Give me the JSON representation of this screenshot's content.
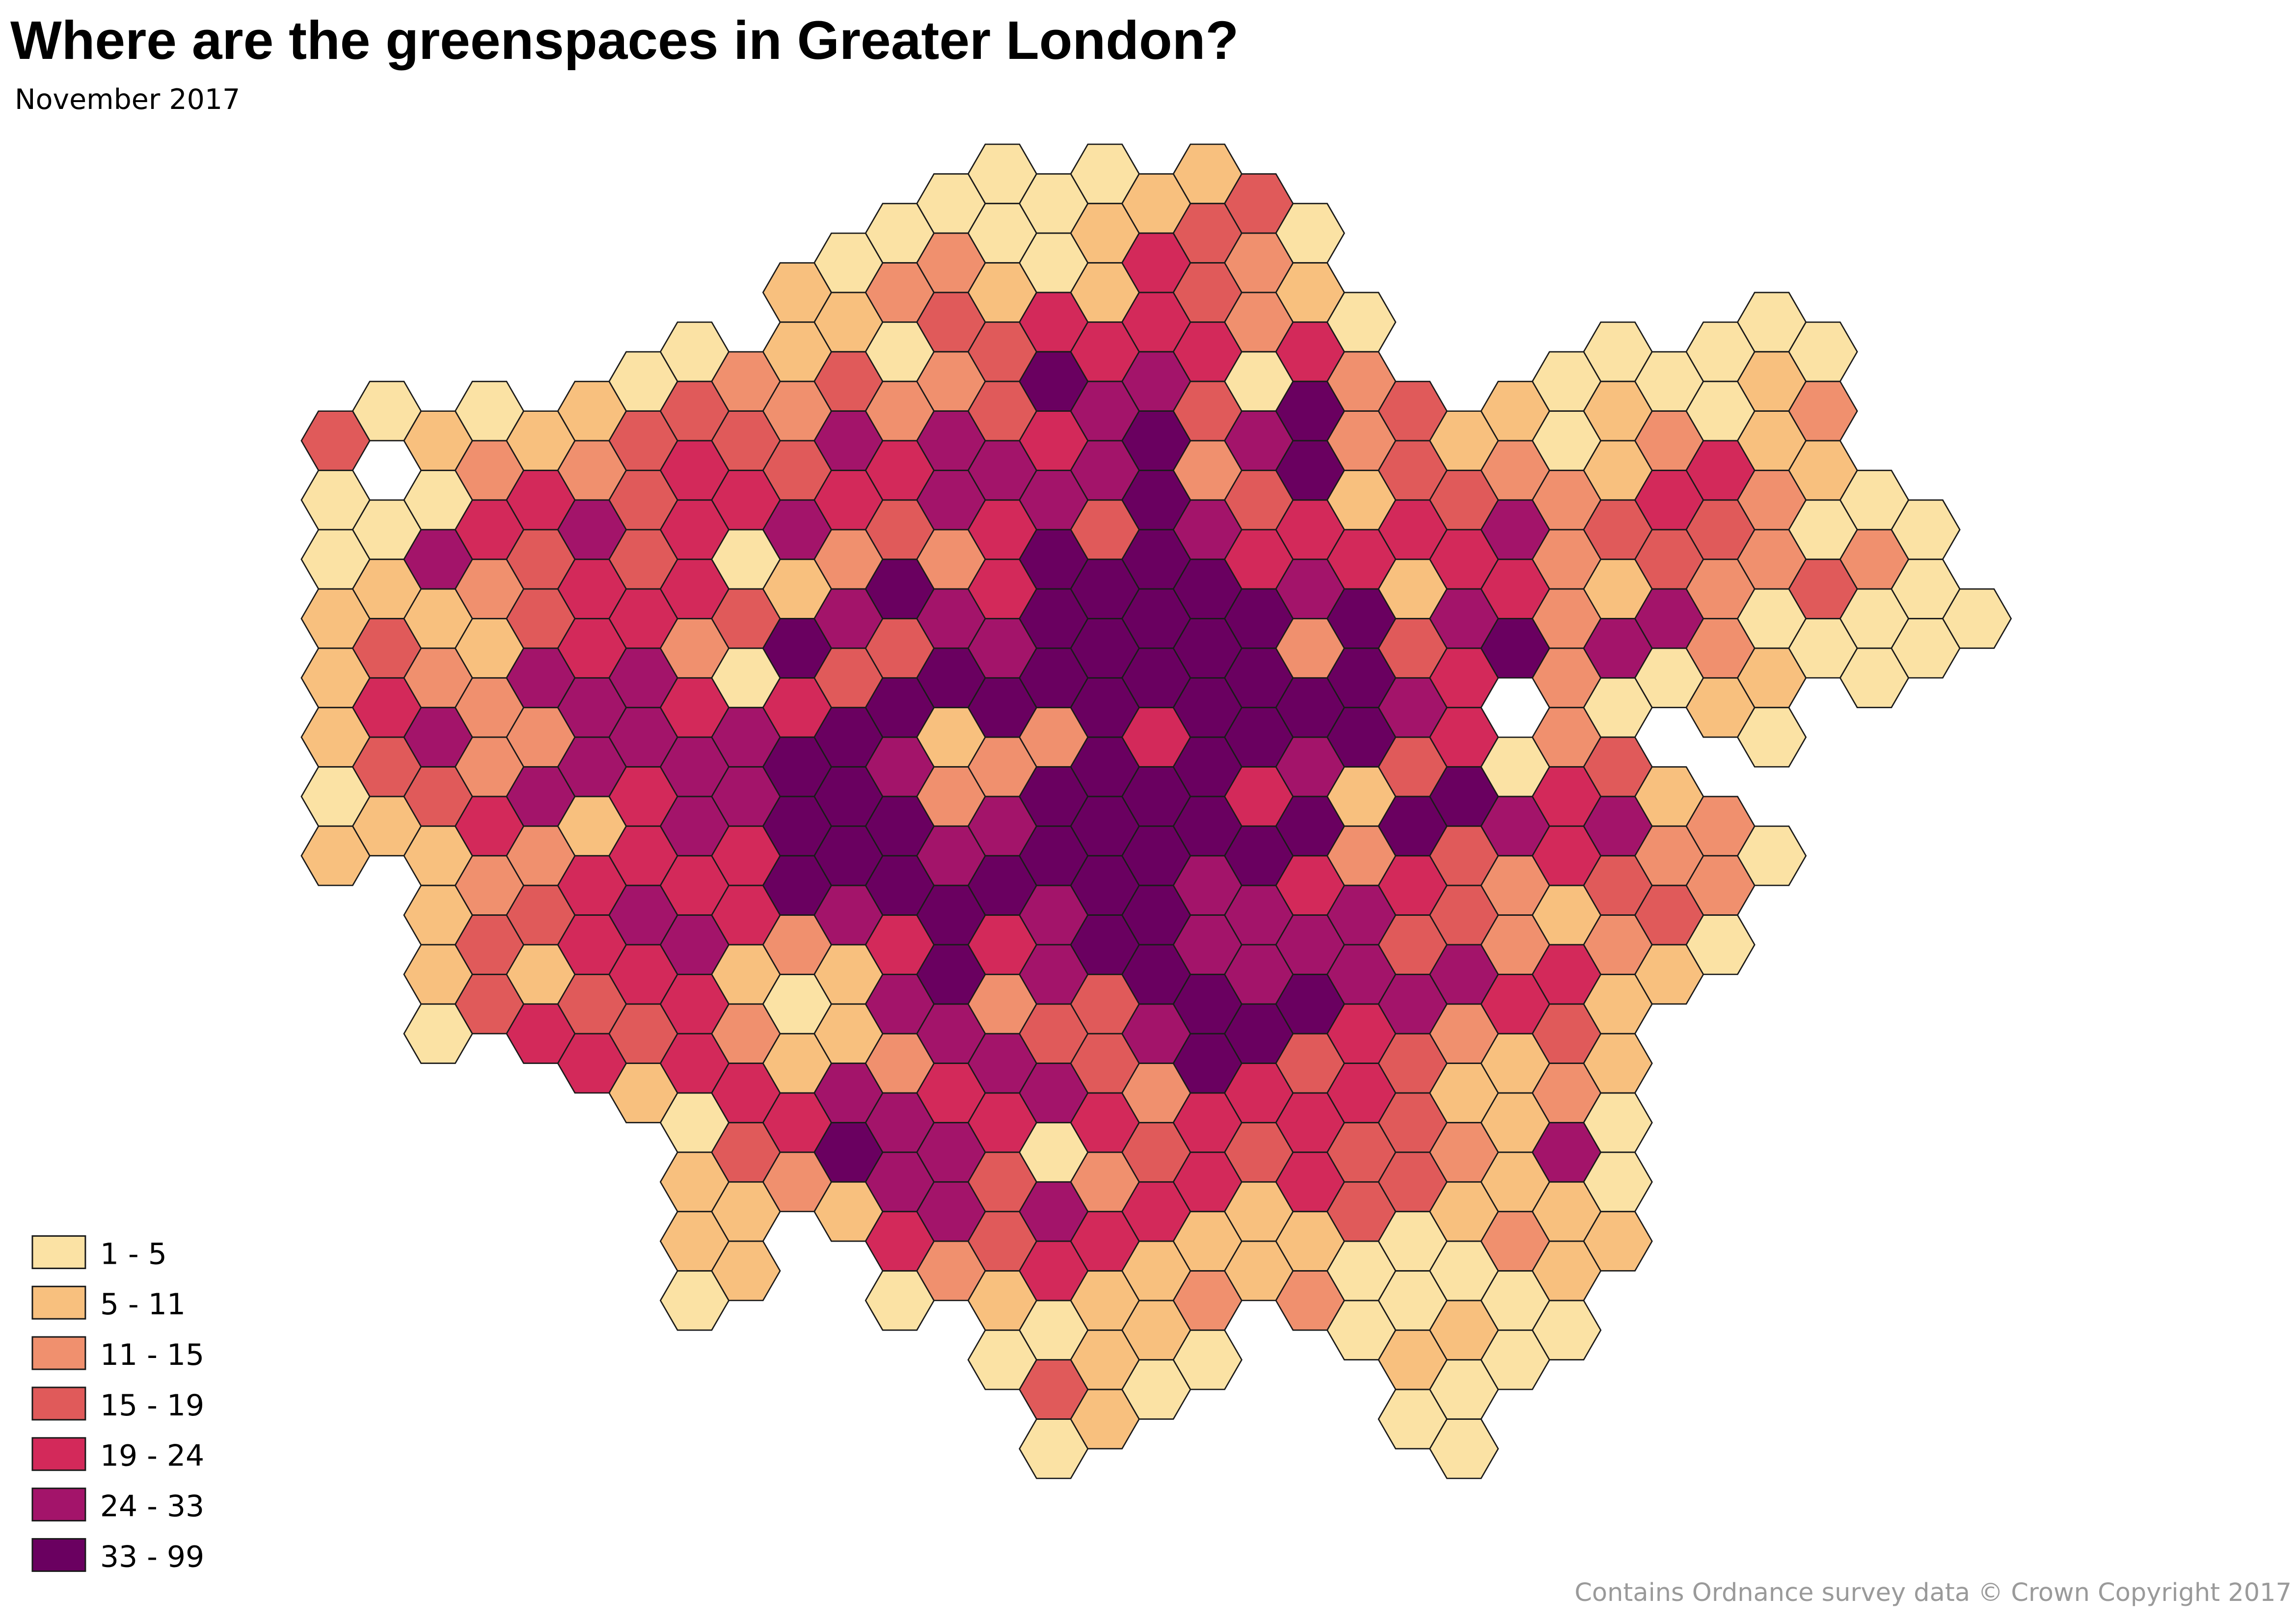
{
  "title": "Where are the greenspaces in Greater London?",
  "subtitle": "November 2017",
  "legend": {
    "items": [
      {
        "label": "1 - 5",
        "color": "#fbe2a4"
      },
      {
        "label": "5 - 11",
        "color": "#f8c07e"
      },
      {
        "label": "11 - 15",
        "color": "#f0906e"
      },
      {
        "label": "15 - 19",
        "color": "#e05a5a"
      },
      {
        "label": "19 - 24",
        "color": "#d3295a"
      },
      {
        "label": "24 - 33",
        "color": "#a3146a"
      },
      {
        "label": "33 - 99",
        "color": "#6a0060"
      }
    ]
  },
  "hexes": [
    [
      null,
      null,
      null,
      null,
      null,
      3,
      0,
      0,
      1,
      1,
      1,
      0,
      1
    ],
    [
      null,
      null,
      null,
      null,
      0,
      null,
      0,
      1,
      3,
      4,
      3,
      1
    ],
    [
      null,
      null,
      null,
      null,
      null,
      1,
      0,
      5,
      1,
      2,
      5,
      3,
      1,
      1,
      1,
      0
    ],
    [
      null,
      null,
      null,
      null,
      0,
      2,
      4,
      2,
      1,
      2,
      2,
      4,
      2,
      3,
      3
    ],
    [
      null,
      null,
      null,
      null,
      null,
      1,
      4,
      3,
      3,
      5,
      2,
      5,
      2,
      3,
      1,
      4
    ],
    [
      null,
      null,
      null,
      null,
      1,
      2,
      5,
      4,
      4,
      5,
      5,
      1,
      4,
      4,
      3,
      4
    ],
    [
      null,
      null,
      null,
      null,
      0,
      3,
      3,
      3,
      4,
      5,
      5,
      4,
      4,
      5,
      4,
      3,
      1
    ],
    [
      null,
      null,
      null,
      0,
      3,
      4,
      4,
      4,
      2,
      4,
      5,
      5,
      4,
      5,
      4,
      4,
      0,
      1,
      1,
      0
    ],
    [
      null,
      null,
      null,
      null,
      2,
      3,
      4,
      0,
      3,
      0,
      5,
      5,
      4,
      4,
      1,
      2,
      4,
      3,
      1,
      1
    ],
    [
      null,
      null,
      1,
      1,
      2,
      3,
      5,
      1,
      6,
      4,
      6,
      6,
      6,
      2,
      0,
      1,
      4,
      2
    ],
    [
      null,
      null,
      0,
      1,
      3,
      5,
      4,
      2,
      5,
      3,
      6,
      6,
      6,
      5,
      1,
      1,
      5,
      6,
      1
    ],
    [
      null,
      0,
      2,
      0,
      2,
      4,
      3,
      6,
      3,
      6,
      5,
      6,
      6,
      4,
      5,
      2,
      5,
      5,
      4,
      0
    ],
    [
      null,
      0,
      2,
      3,
      2,
      5,
      5,
      2,
      5,
      6,
      1,
      2,
      5,
      6,
      6,
      5,
      4,
      5,
      5,
      2
    ],
    [
      0,
      0,
      1,
      3,
      3,
      5,
      4,
      4,
      5,
      6,
      2,
      5,
      6,
      4,
      2,
      5,
      4,
      3,
      3,
      1,
      0
    ],
    [
      null,
      0,
      0,
      4,
      6,
      4,
      5,
      6,
      6,
      6,
      2,
      6,
      6,
      5,
      5,
      3,
      5,
      0,
      5,
      4,
      0,
      3,
      0
    ],
    [
      0,
      1,
      1,
      4,
      5,
      5,
      3,
      6,
      6,
      6,
      6,
      6,
      6,
      6,
      3,
      3,
      4,
      2,
      4,
      1,
      1,
      1
    ],
    [
      null,
      1,
      4,
      4,
      5,
      6,
      6,
      6,
      6,
      6,
      4,
      6,
      6,
      6,
      6,
      5,
      2,
      3,
      4,
      1,
      1,
      0
    ],
    [
      1,
      3,
      3,
      4,
      3,
      2,
      5,
      6,
      6,
      6,
      6,
      6,
      5,
      5,
      6,
      6,
      4,
      4,
      1,
      2,
      0
    ],
    [
      null,
      3,
      2,
      2,
      0,
      5,
      3,
      4,
      6,
      6,
      6,
      4,
      6,
      5,
      5,
      6,
      4,
      3,
      1,
      1
    ],
    [
      null,
      0,
      1,
      4,
      6,
      6,
      4,
      5,
      2,
      6,
      5,
      6,
      4,
      5,
      6,
      3,
      4,
      4,
      1,
      2
    ],
    [
      null,
      null,
      null,
      0,
      2,
      2,
      1,
      4,
      6,
      6,
      6,
      1,
      2,
      5,
      5,
      4,
      4,
      3,
      3,
      0,
      0
    ],
    [
      null,
      null,
      null,
      null,
      3,
      3,
      4,
      1,
      3,
      5,
      3,
      6,
      4,
      3,
      5,
      3,
      3,
      3,
      0,
      0,
      1,
      0
    ],
    [
      null,
      null,
      null,
      null,
      null,
      1,
      3,
      4,
      5,
      4,
      4,
      6,
      3,
      3,
      5,
      2,
      1,
      2,
      1,
      0,
      1,
      0,
      0
    ],
    [
      null,
      null,
      null,
      null,
      1,
      2,
      5,
      4,
      6,
      null,
      0,
      5,
      2,
      2,
      4,
      1,
      1,
      1,
      2,
      0,
      0
    ],
    [
      null,
      null,
      null,
      null,
      0,
      0,
      2,
      2,
      2,
      2,
      2,
      4,
      4,
      1,
      4,
      3,
      2,
      5,
      1,
      1,
      0
    ],
    [
      null,
      null,
      null,
      0,
      1,
      1,
      3,
      1,
      5,
      0,
      3,
      5,
      3,
      2,
      1,
      1,
      0,
      0,
      1
    ],
    [
      null,
      null,
      null,
      null,
      0,
      2,
      4,
      3,
      5,
      0,
      null,
      1,
      2,
      3,
      1
    ],
    [
      null,
      null,
      null,
      0,
      0,
      4,
      3,
      2,
      2,
      1,
      null,
      2,
      2,
      0
    ],
    [
      null,
      null,
      null,
      0,
      1,
      1,
      2,
      2,
      0,
      1,
      0,
      null,
      0
    ],
    [
      null,
      null,
      null,
      0,
      2,
      1,
      0,
      3,
      0
    ],
    [
      null,
      null,
      null,
      null,
      null,
      null,
      0,
      2,
      0,
      0
    ],
    [
      null,
      null,
      null,
      null,
      null,
      null,
      0,
      0,
      0
    ],
    [
      null,
      null,
      null,
      null,
      null,
      null,
      null,
      null,
      0
    ]
  ],
  "credit": "Contains Ordnance survey data © Crown Copyright 2017"
}
